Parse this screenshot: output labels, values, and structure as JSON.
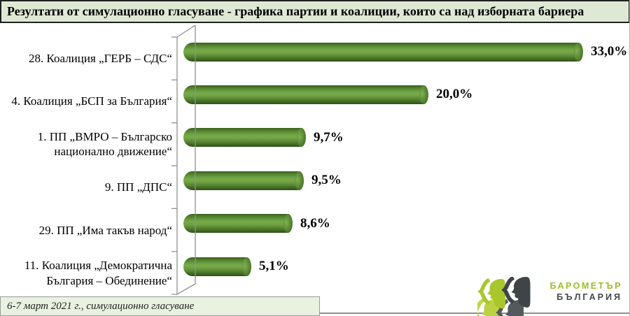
{
  "title_bar": {
    "text": "Резултати от симулационно гласуване - графика партии и коалиции, които  са над изборната бариера",
    "bg": "#dfe8d4"
  },
  "chart_data": {
    "type": "bar",
    "orientation": "horizontal",
    "style": "3d-cylinder",
    "title": "Резултати от симулационно гласуване - графика партии и коалиции, които са над изборната бариера",
    "categories": [
      "28. Коалиция „ГЕРБ – СДС“",
      "4. Коалиция „БСП за България“",
      "1. ПП „ВМРО – Българско национално движение“",
      "9. ПП „ДПС“",
      "29. ПП „Има такъв народ“",
      "11. Коалиция „Демократична България – Обединение“"
    ],
    "values": [
      33.0,
      20.0,
      9.7,
      9.5,
      8.6,
      5.1
    ],
    "value_labels": [
      "33,0%",
      "20,0%",
      "9,7%",
      "9,5%",
      "8,6%",
      "5,1%"
    ],
    "unit": "%",
    "xlim": [
      0,
      35
    ],
    "grid": false,
    "legend": "none",
    "bar_color": "#5f8f36",
    "axis_color": "#909090"
  },
  "footer": {
    "note": "6-7 март 2021 г., симулационно гласуване",
    "bg": "#e9f1e1"
  },
  "logo": {
    "line1": "БАРОМЕТЪР",
    "line2": "БЪЛГАРИЯ",
    "green": "#a9c62d",
    "dark": "#3f4448"
  }
}
